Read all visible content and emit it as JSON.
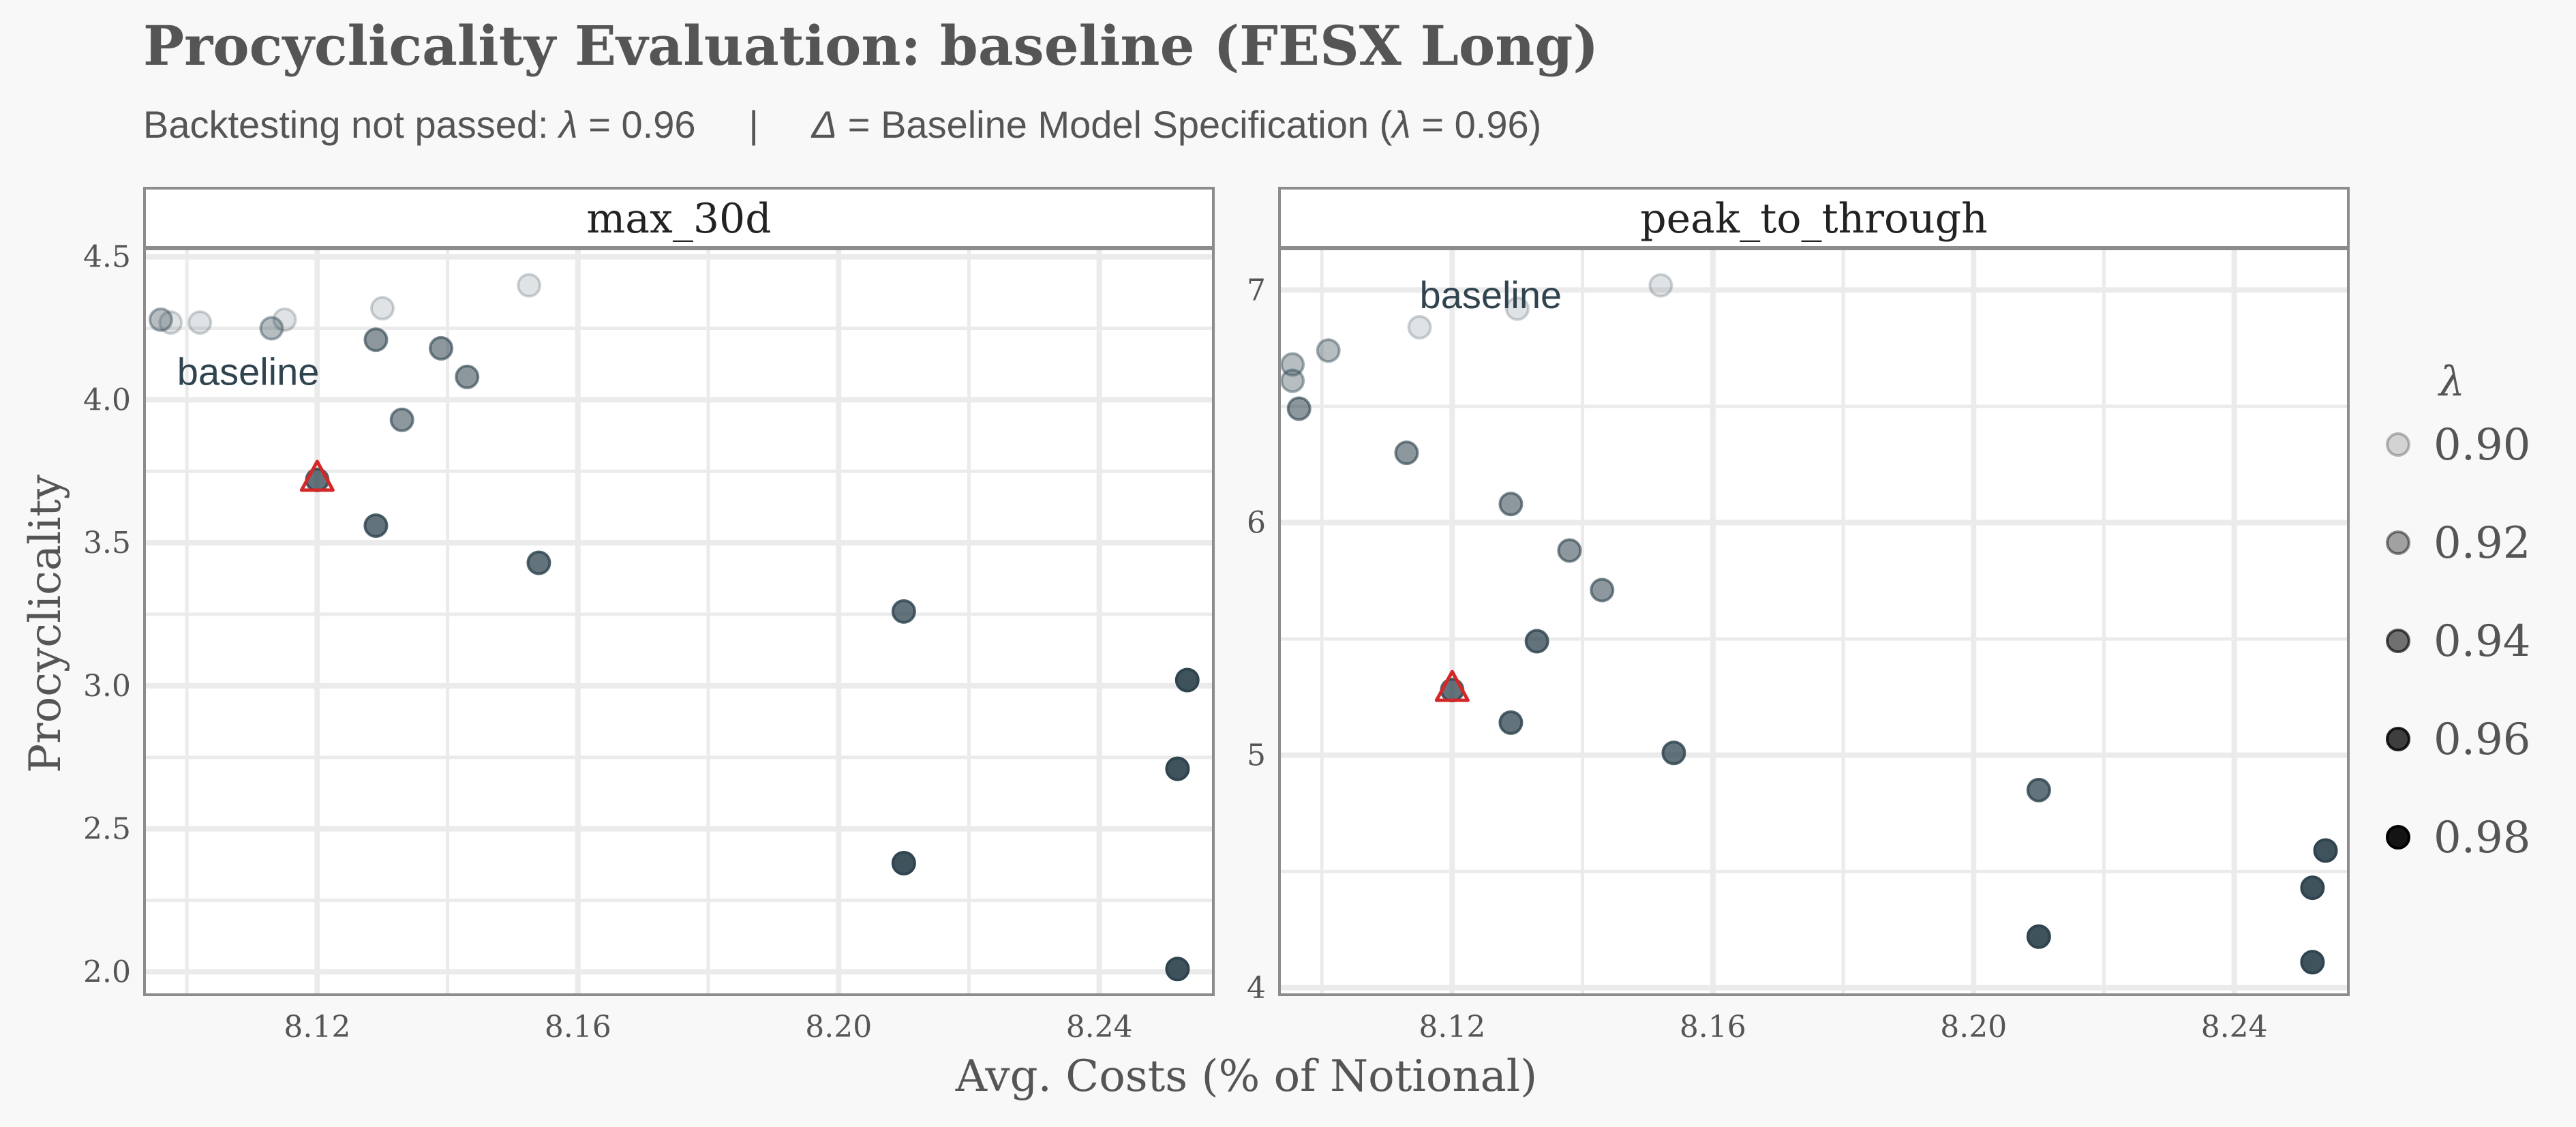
{
  "title": "Procyclicality Evaluation: baseline (FESX Long)",
  "subtitle": {
    "left_text": "Backtesting not passed: ",
    "left_symbol": "λ",
    "left_value": " = 0.96",
    "separator": "|",
    "delta_symbol": "Δ",
    "right_text": " = Baseline Model Specification (",
    "right_symbol": "λ",
    "right_value": " = 0.96)"
  },
  "colors": {
    "background": "#f8f8f8",
    "panel_bg": "#ffffff",
    "grid": "#ebebeb",
    "point": "#2f444f",
    "highlight": "#d62728",
    "text": "#555555",
    "annotation": "#2f444f"
  },
  "chart_data": {
    "type": "scatter",
    "xlabel": "Avg. Costs (% of Notional)",
    "ylabel": "Procyclicality",
    "legend": {
      "title": "λ",
      "position": "right",
      "entries": [
        "0.90",
        "0.92",
        "0.94",
        "0.96",
        "0.98"
      ],
      "values": [
        0.9,
        0.92,
        0.94,
        0.96,
        0.98
      ],
      "opacities": [
        0.15,
        0.35,
        0.55,
        0.75,
        0.92
      ]
    },
    "x_range": [
      8.0935,
      8.2575
    ],
    "x_ticks": [
      8.12,
      8.16,
      8.2,
      8.24
    ],
    "x_tick_labels": [
      "8.12",
      "8.16",
      "8.20",
      "8.24"
    ],
    "grid": true,
    "panels": [
      {
        "label": "max_30d",
        "y_range": [
          1.92,
          4.53
        ],
        "y_ticks": [
          2.0,
          2.5,
          3.0,
          3.5,
          4.0,
          4.5
        ],
        "y_tick_labels": [
          "2.0",
          "2.5",
          "3.0",
          "3.5",
          "4.0",
          "4.5"
        ],
        "points": [
          {
            "x": 8.1525,
            "y": 4.4,
            "lambda": 0.9
          },
          {
            "x": 8.13,
            "y": 4.32,
            "lambda": 0.9
          },
          {
            "x": 8.115,
            "y": 4.28,
            "lambda": 0.9
          },
          {
            "x": 8.102,
            "y": 4.27,
            "lambda": 0.9
          },
          {
            "x": 8.0975,
            "y": 4.27,
            "lambda": 0.9
          },
          {
            "x": 8.096,
            "y": 4.28,
            "lambda": 0.92
          },
          {
            "x": 8.113,
            "y": 4.25,
            "lambda": 0.92
          },
          {
            "x": 8.129,
            "y": 4.21,
            "lambda": 0.94
          },
          {
            "x": 8.139,
            "y": 4.18,
            "lambda": 0.94
          },
          {
            "x": 8.143,
            "y": 4.08,
            "lambda": 0.94
          },
          {
            "x": 8.133,
            "y": 3.93,
            "lambda": 0.94
          },
          {
            "x": 8.12,
            "y": 3.72,
            "lambda": 0.96,
            "highlight": true
          },
          {
            "x": 8.129,
            "y": 3.56,
            "lambda": 0.96
          },
          {
            "x": 8.154,
            "y": 3.43,
            "lambda": 0.96
          },
          {
            "x": 8.21,
            "y": 3.26,
            "lambda": 0.96
          },
          {
            "x": 8.2535,
            "y": 3.02,
            "lambda": 0.98
          },
          {
            "x": 8.252,
            "y": 2.71,
            "lambda": 0.98
          },
          {
            "x": 8.21,
            "y": 2.38,
            "lambda": 0.98
          },
          {
            "x": 8.252,
            "y": 2.01,
            "lambda": 0.98
          }
        ],
        "annotation": {
          "text": "baseline",
          "x": 8.0985,
          "y": 4.1
        }
      },
      {
        "label": "peak_to_through",
        "y_range": [
          3.97,
          7.18
        ],
        "y_ticks": [
          4,
          5,
          6,
          7
        ],
        "y_tick_labels": [
          "4",
          "5",
          "6",
          "7"
        ],
        "points": [
          {
            "x": 8.152,
            "y": 7.02,
            "lambda": 0.9
          },
          {
            "x": 8.13,
            "y": 6.92,
            "lambda": 0.9
          },
          {
            "x": 8.115,
            "y": 6.84,
            "lambda": 0.9
          },
          {
            "x": 8.101,
            "y": 6.74,
            "lambda": 0.92
          },
          {
            "x": 8.0955,
            "y": 6.68,
            "lambda": 0.92
          },
          {
            "x": 8.0955,
            "y": 6.61,
            "lambda": 0.92
          },
          {
            "x": 8.0965,
            "y": 6.49,
            "lambda": 0.94
          },
          {
            "x": 8.113,
            "y": 6.3,
            "lambda": 0.94
          },
          {
            "x": 8.129,
            "y": 6.08,
            "lambda": 0.94
          },
          {
            "x": 8.138,
            "y": 5.88,
            "lambda": 0.94
          },
          {
            "x": 8.143,
            "y": 5.71,
            "lambda": 0.94
          },
          {
            "x": 8.133,
            "y": 5.49,
            "lambda": 0.96
          },
          {
            "x": 8.12,
            "y": 5.28,
            "lambda": 0.96,
            "highlight": true
          },
          {
            "x": 8.129,
            "y": 5.14,
            "lambda": 0.96
          },
          {
            "x": 8.154,
            "y": 5.01,
            "lambda": 0.96
          },
          {
            "x": 8.21,
            "y": 4.85,
            "lambda": 0.96
          },
          {
            "x": 8.254,
            "y": 4.59,
            "lambda": 0.98
          },
          {
            "x": 8.252,
            "y": 4.43,
            "lambda": 0.98
          },
          {
            "x": 8.21,
            "y": 4.22,
            "lambda": 0.98
          },
          {
            "x": 8.252,
            "y": 4.11,
            "lambda": 0.98
          }
        ],
        "annotation": {
          "text": "baseline",
          "x": 8.115,
          "y": 6.98
        }
      }
    ]
  }
}
